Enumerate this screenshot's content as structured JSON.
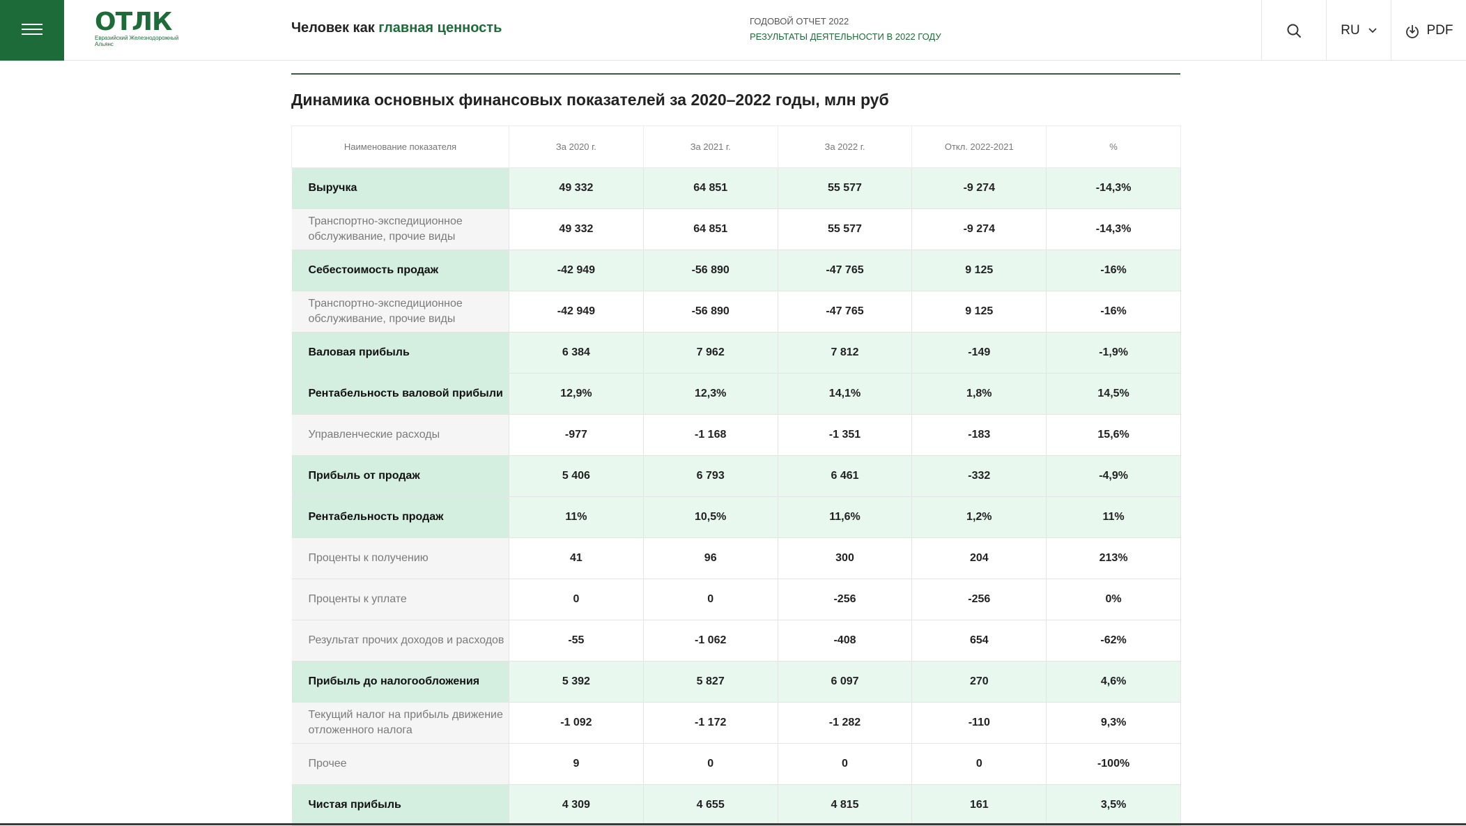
{
  "header": {
    "logo_text": "ОТЛК",
    "logo_sub": "Евразийский Железнодорожный Альянс",
    "tagline_plain": "Человек как ",
    "tagline_accent": "главная ценность",
    "report_line1": "ГОДОВОЙ ОТЧЕТ 2022",
    "report_line2": "РЕЗУЛЬТАТЫ ДЕЯТЕЛЬНОСТИ В 2022 ГОДУ",
    "lang": "RU",
    "pdf": "PDF"
  },
  "colors": {
    "brand_green": "#1e6b3a",
    "row_highlight": "#e8f8ee",
    "row_name_highlight": "#d4efdf"
  },
  "page_title": "Динамика основных финансовых показателей за 2020–2022 годы, млн руб",
  "table": {
    "headers": [
      "Наименование показателя",
      "За 2020 г.",
      "За 2021 г.",
      "За 2022 г.",
      "Откл. 2022-2021",
      "%"
    ],
    "rows": [
      {
        "bold": true,
        "name": "Выручка",
        "values": [
          "49 332",
          "64 851",
          "55 577",
          "-9 274",
          "-14,3%"
        ]
      },
      {
        "bold": false,
        "name": "Транспортно-экспедиционное обслуживание, прочие виды",
        "values": [
          "49 332",
          "64 851",
          "55 577",
          "-9 274",
          "-14,3%"
        ]
      },
      {
        "bold": true,
        "name": "Себестоимость продаж",
        "values": [
          "-42 949",
          "-56 890",
          "-47 765",
          "9 125",
          "-16%"
        ]
      },
      {
        "bold": false,
        "name": "Транспортно-экспедиционное обслуживание, прочие виды",
        "values": [
          "-42 949",
          "-56 890",
          "-47 765",
          "9 125",
          "-16%"
        ]
      },
      {
        "bold": true,
        "name": "Валовая прибыль",
        "values": [
          "6 384",
          "7 962",
          "7 812",
          "-149",
          "-1,9%"
        ]
      },
      {
        "bold": true,
        "name": "Рентабельность валовой прибыли",
        "values": [
          "12,9%",
          "12,3%",
          "14,1%",
          "1,8%",
          "14,5%"
        ]
      },
      {
        "bold": false,
        "name": "Управленческие расходы",
        "values": [
          "-977",
          "-1 168",
          "-1 351",
          "-183",
          "15,6%"
        ]
      },
      {
        "bold": true,
        "name": "Прибыль от продаж",
        "values": [
          "5 406",
          "6 793",
          "6 461",
          "-332",
          "-4,9%"
        ]
      },
      {
        "bold": true,
        "name": "Рентабельность продаж",
        "values": [
          "11%",
          "10,5%",
          "11,6%",
          "1,2%",
          "11%"
        ]
      },
      {
        "bold": false,
        "name": "Проценты к получению",
        "values": [
          "41",
          "96",
          "300",
          "204",
          "213%"
        ]
      },
      {
        "bold": false,
        "name": "Проценты к уплате",
        "values": [
          "0",
          "0",
          "-256",
          "-256",
          "0%"
        ]
      },
      {
        "bold": false,
        "name": "Результат прочих доходов и расходов",
        "values": [
          "-55",
          "-1 062",
          "-408",
          "654",
          "-62%"
        ]
      },
      {
        "bold": true,
        "name": "Прибыль до налогообложения",
        "values": [
          "5 392",
          "5 827",
          "6 097",
          "270",
          "4,6%"
        ]
      },
      {
        "bold": false,
        "name": "Текущий налог на прибыль движение отложенного налога",
        "values": [
          "-1 092",
          "-1 172",
          "-1 282",
          "-110",
          "9,3%"
        ]
      },
      {
        "bold": false,
        "name": "Прочее",
        "values": [
          "9",
          "0",
          "0",
          "0",
          "-100%"
        ]
      },
      {
        "bold": true,
        "name": "Чистая прибыль",
        "values": [
          "4 309",
          "4 655",
          "4 815",
          "161",
          "3,5%"
        ]
      }
    ]
  }
}
